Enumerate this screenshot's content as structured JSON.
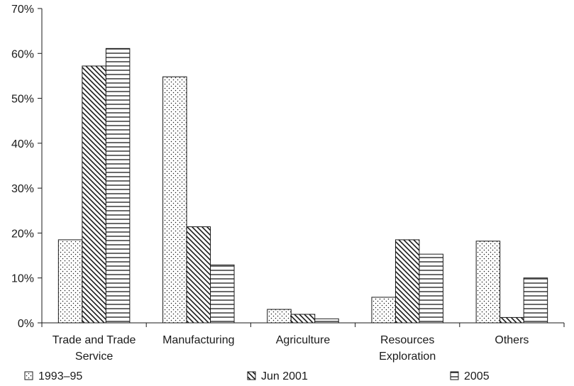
{
  "chart_data": {
    "type": "bar",
    "title": "",
    "xlabel": "",
    "ylabel": "",
    "categories": [
      [
        "Trade and Trade",
        "Service"
      ],
      [
        "Manufacturing"
      ],
      [
        "Agriculture"
      ],
      [
        "Resources",
        "Exploration"
      ],
      [
        "Others"
      ]
    ],
    "series": [
      {
        "name": "1993–95",
        "pattern": "dots",
        "values": [
          18.5,
          54.8,
          3.0,
          5.7,
          18.2
        ]
      },
      {
        "name": "Jun 2001",
        "pattern": "diagonal",
        "values": [
          57.2,
          21.4,
          1.9,
          18.5,
          1.2
        ]
      },
      {
        "name": "2005",
        "pattern": "horizontal",
        "values": [
          61.1,
          12.9,
          0.9,
          15.3,
          10.0
        ]
      }
    ],
    "ylim": [
      0,
      70
    ],
    "yticks": [
      0,
      10,
      20,
      30,
      40,
      50,
      60,
      70
    ],
    "y_tick_format": "percent",
    "legend_position": "bottom",
    "grid": false,
    "colors": {
      "bar_fill": "#ffffff",
      "bar_stroke": "#1a1a1a",
      "axis": "#1a1a1a"
    }
  }
}
